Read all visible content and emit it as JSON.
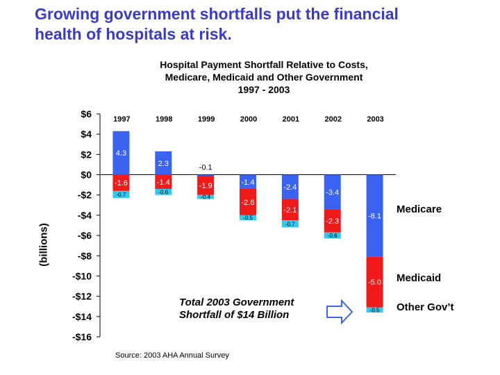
{
  "slide_title_lines": [
    "Growing government shortfalls put the financial",
    "health of hospitals at risk."
  ],
  "chart_data": {
    "type": "bar",
    "stacked": true,
    "title_lines": [
      "Hospital Payment Shortfall Relative to Costs,",
      "Medicare, Medicaid and Other Government",
      "1997 - 2003"
    ],
    "ylabel": "(billions)",
    "xlabel": "",
    "categories": [
      "1997",
      "1998",
      "1999",
      "2000",
      "2001",
      "2002",
      "2003"
    ],
    "ylim": [
      -16,
      6
    ],
    "yticks": [
      6,
      4,
      2,
      0,
      -2,
      -4,
      -6,
      -8,
      -10,
      -12,
      -14,
      -16
    ],
    "ytick_labels": [
      "$6",
      "$4",
      "$2",
      "$0",
      "-$2",
      "-$4",
      "-$6",
      "-$8",
      "-$10",
      "-$12",
      "-$14",
      "-$16"
    ],
    "series": [
      {
        "name": "Medicare",
        "color": "#3b63f2",
        "values": [
          4.3,
          2.3,
          -0.1,
          -1.4,
          -2.4,
          -3.4,
          -8.1
        ],
        "labels": [
          "4.3",
          "2.3",
          "-0.1",
          "-1.4",
          "-2.4",
          "-3.4",
          "-8.1"
        ]
      },
      {
        "name": "Medicaid",
        "color": "#f01a1a",
        "values": [
          -1.6,
          -1.4,
          -1.9,
          -2.6,
          -2.1,
          -2.3,
          -5.0
        ],
        "labels": [
          "-1.6",
          "-1.4",
          "-1.9",
          "-2.6",
          "-2.1",
          "-2.3",
          "-5.0"
        ]
      },
      {
        "name": "Other Gov’t",
        "color": "#33c8f0",
        "values": [
          -0.7,
          -0.6,
          -0.4,
          -0.5,
          -0.7,
          -0.6,
          -0.5
        ],
        "labels": [
          "-0.7",
          "-0.6",
          "-0.4",
          "-0.5",
          "-0.7",
          "-0.6",
          "-0.5"
        ]
      }
    ],
    "legend_placement": "right",
    "grid": false,
    "annotation_lines": [
      "Total 2003 Government",
      "Shortfall of $14 Billion"
    ],
    "arrow_color": "#3b63f2"
  },
  "source_text": "Source:  2003 AHA Annual Survey"
}
